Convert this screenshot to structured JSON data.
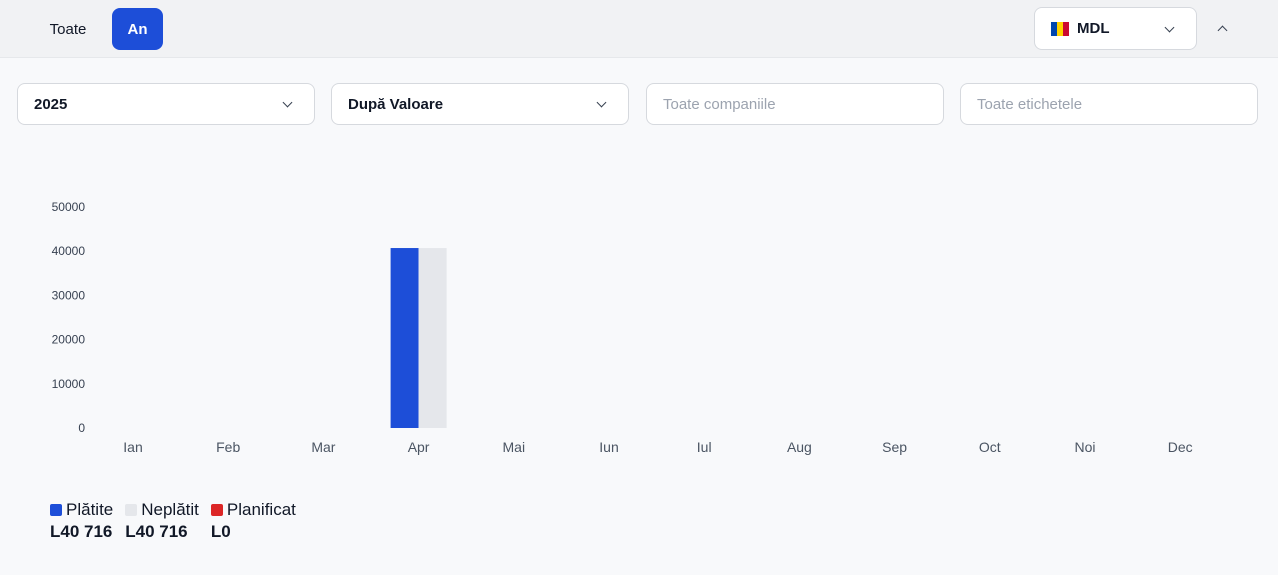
{
  "tabs": {
    "all_label": "Toate",
    "year_label": "An"
  },
  "currency": {
    "code": "MDL",
    "flag_colors": [
      "#0046ae",
      "#ffd200",
      "#cc092f"
    ]
  },
  "filters": {
    "year": "2025",
    "sort": "După Valoare",
    "companies_placeholder": "Toate companiile",
    "tags_placeholder": "Toate etichetele"
  },
  "chart_data": {
    "type": "bar",
    "categories": [
      "Ian",
      "Feb",
      "Mar",
      "Apr",
      "Mai",
      "Iun",
      "Iul",
      "Aug",
      "Sep",
      "Oct",
      "Noi",
      "Dec"
    ],
    "series": [
      {
        "name": "Plătite",
        "color": "#1d4ed8",
        "values": [
          0,
          0,
          0,
          40716,
          0,
          0,
          0,
          0,
          0,
          0,
          0,
          0
        ]
      },
      {
        "name": "Neplătit",
        "color": "#e5e7eb",
        "values": [
          0,
          0,
          0,
          40716,
          0,
          0,
          0,
          0,
          0,
          0,
          0,
          0
        ]
      },
      {
        "name": "Planificat",
        "color": "#dc2626",
        "values": [
          0,
          0,
          0,
          0,
          0,
          0,
          0,
          0,
          0,
          0,
          0,
          0
        ]
      }
    ],
    "yticks": [
      "0",
      "10000",
      "20000",
      "30000",
      "40000",
      "50000"
    ],
    "ylim": [
      0,
      50000
    ],
    "grid": false,
    "legend": "bottom-left"
  },
  "legend": [
    {
      "label": "Plătite",
      "total": "L40 716",
      "color": "#1d4ed8"
    },
    {
      "label": "Neplătit",
      "total": "L40 716",
      "color": "#e5e7eb"
    },
    {
      "label": "Planificat",
      "total": "L0",
      "color": "#dc2626"
    }
  ]
}
